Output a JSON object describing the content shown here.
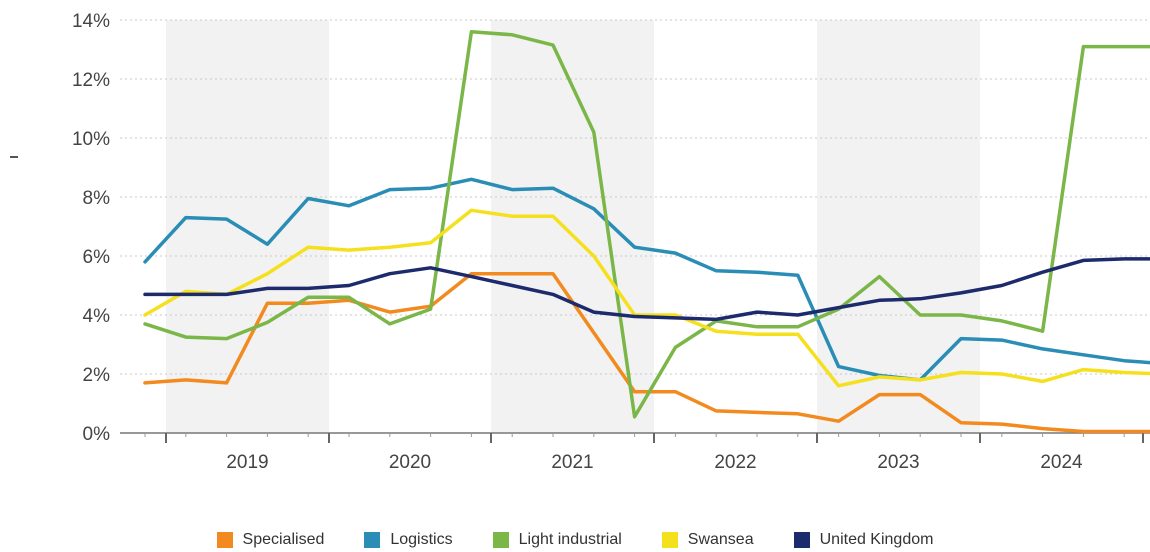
{
  "chart_data": {
    "type": "line",
    "title": "",
    "xlabel": "",
    "ylabel": "",
    "ylim": [
      0,
      14
    ],
    "y_ticks": [
      "0%",
      "2%",
      "4%",
      "6%",
      "8%",
      "10%",
      "12%",
      "14%"
    ],
    "year_labels": [
      "2019",
      "2020",
      "2021",
      "2022",
      "2023",
      "2024"
    ],
    "grid": "horizontal dotted",
    "shaded_years": [
      "2019",
      "2021",
      "2023"
    ],
    "legend_position": "bottom",
    "x": [
      "2018 Q3",
      "2018 Q4",
      "2019 Q1",
      "2019 Q2",
      "2019 Q3",
      "2019 Q4",
      "2020 Q1",
      "2020 Q2",
      "2020 Q3",
      "2020 Q4",
      "2021 Q1",
      "2021 Q2",
      "2021 Q3",
      "2021 Q4",
      "2022 Q1",
      "2022 Q2",
      "2022 Q3",
      "2022 Q4",
      "2023 Q1",
      "2023 Q2",
      "2023 Q3",
      "2023 Q4",
      "2024 Q1",
      "2024 Q2",
      "2024 Q3",
      "2024 Q4"
    ],
    "series": [
      {
        "name": "Specialised",
        "color": "#f28a1f",
        "values": [
          1.7,
          1.8,
          1.7,
          4.4,
          4.4,
          4.5,
          4.1,
          4.3,
          5.4,
          5.4,
          5.4,
          3.4,
          1.4,
          1.4,
          0.75,
          0.7,
          0.65,
          0.4,
          1.3,
          1.3,
          0.35,
          0.3,
          0.15,
          0.05,
          0.05,
          0.05
        ]
      },
      {
        "name": "Logistics",
        "color": "#2a8db5",
        "values": [
          5.8,
          7.3,
          7.25,
          6.4,
          7.95,
          7.7,
          8.25,
          8.3,
          8.6,
          8.25,
          8.3,
          7.6,
          6.3,
          6.1,
          5.5,
          5.45,
          5.35,
          2.25,
          1.95,
          1.8,
          3.2,
          3.15,
          2.85,
          2.65,
          2.45,
          2.35
        ]
      },
      {
        "name": "Light industrial",
        "color": "#7ab648",
        "values": [
          3.7,
          3.25,
          3.2,
          3.75,
          4.6,
          4.6,
          3.7,
          4.2,
          13.6,
          13.5,
          13.15,
          10.2,
          0.55,
          2.9,
          3.8,
          3.6,
          3.6,
          4.2,
          5.3,
          4.0,
          4.0,
          3.8,
          3.45,
          13.1,
          13.1,
          13.1
        ]
      },
      {
        "name": "Swansea",
        "color": "#f5e01e",
        "values": [
          4.0,
          4.8,
          4.7,
          5.4,
          6.3,
          6.2,
          6.3,
          6.45,
          7.55,
          7.35,
          7.35,
          6.0,
          4.0,
          4.0,
          3.45,
          3.35,
          3.35,
          1.6,
          1.9,
          1.8,
          2.05,
          2.0,
          1.75,
          2.15,
          2.05,
          2.0
        ]
      },
      {
        "name": "United Kingdom",
        "color": "#1d2a6b",
        "values": [
          4.7,
          4.7,
          4.7,
          4.9,
          4.9,
          5.0,
          5.4,
          5.6,
          5.3,
          5.0,
          4.7,
          4.1,
          3.95,
          3.9,
          3.85,
          4.1,
          4.0,
          4.25,
          4.5,
          4.55,
          4.75,
          5.0,
          5.45,
          5.85,
          5.9,
          5.9
        ]
      }
    ]
  }
}
